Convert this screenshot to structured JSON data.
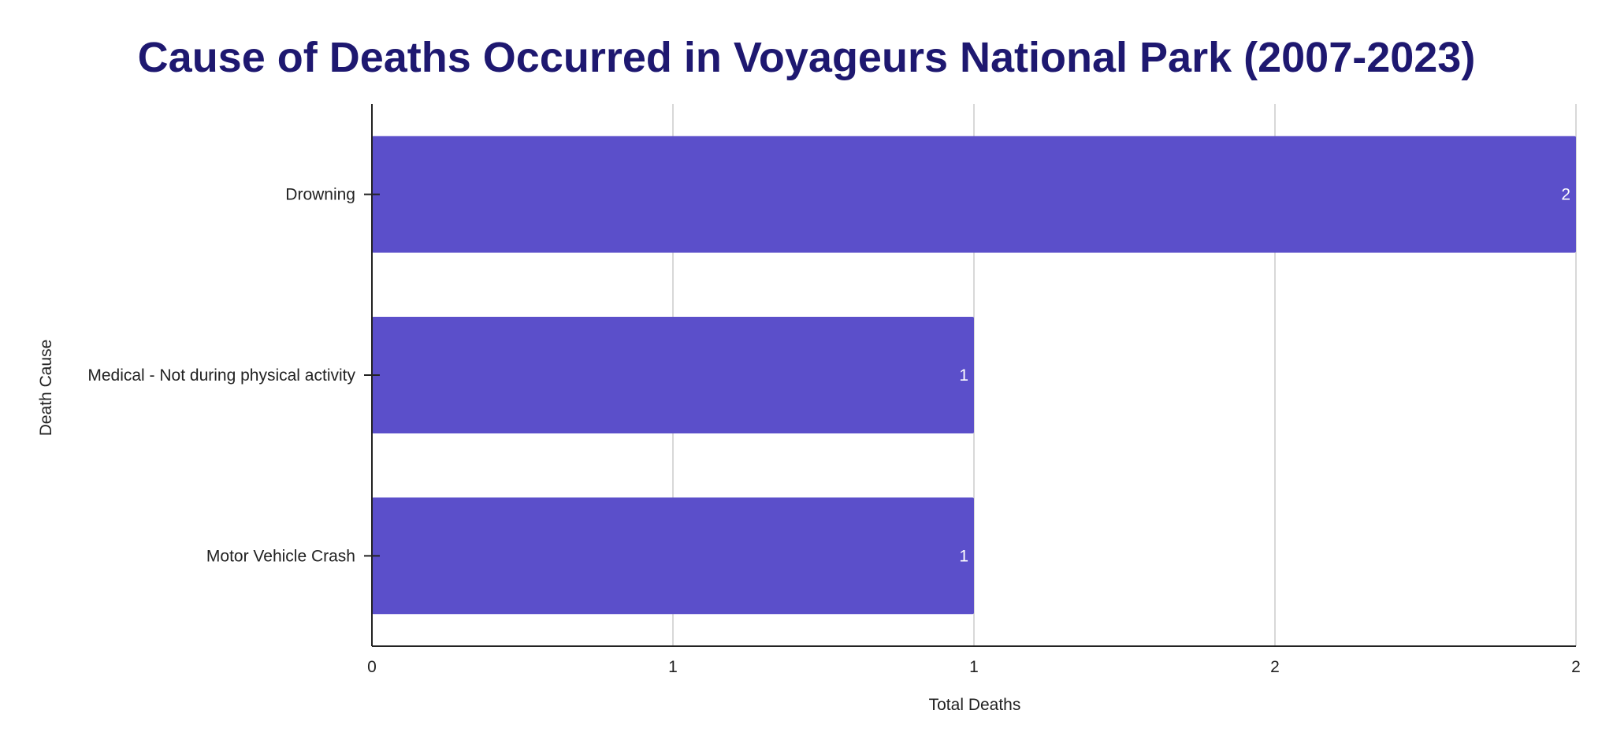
{
  "colors": {
    "title": "#1e1870",
    "bar": "#5b4fca",
    "grid": "#cccccc",
    "axis": "#222222",
    "data_label": "#ffffff"
  },
  "chart_data": {
    "type": "bar",
    "orientation": "horizontal",
    "title": "Cause of Deaths Occurred in Voyageurs National Park (2007-2023)",
    "xlabel": "Total Deaths",
    "ylabel": "Death Cause",
    "categories": [
      "Drowning",
      "Medical - Not during physical activity",
      "Motor Vehicle Crash"
    ],
    "values": [
      2,
      1,
      1
    ],
    "data_labels": [
      "2",
      "1",
      "1"
    ],
    "xlim": [
      0,
      2
    ],
    "x_ticks": [
      0,
      0.5,
      1,
      1.5,
      2
    ],
    "x_tick_labels": [
      "0",
      "1",
      "1",
      "2",
      "2"
    ],
    "grid": true,
    "legend": "none"
  }
}
